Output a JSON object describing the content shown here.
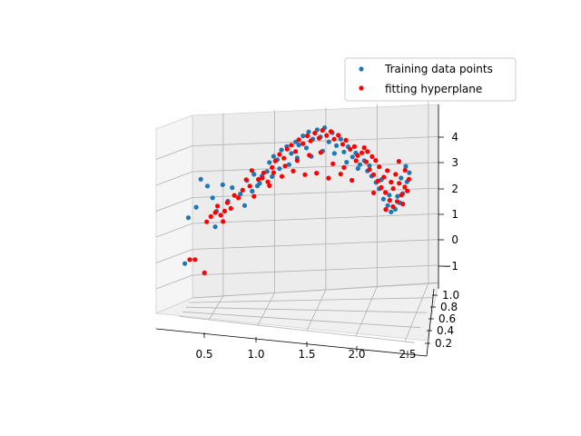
{
  "chart_data": {
    "type": "scatter",
    "projection": "3d",
    "title": "",
    "xlabel": "",
    "ylabel": "",
    "zlabel": "",
    "x_ticks": [
      "0.5",
      "1.0",
      "1.5",
      "2.0",
      "2.5"
    ],
    "y_ticks": [
      "0.2",
      "0.4",
      "0.6",
      "0.8",
      "1.0"
    ],
    "z_ticks": [
      "−1",
      "0",
      "1",
      "2",
      "3",
      "4"
    ],
    "xlim": [
      0.2,
      2.6
    ],
    "ylim": [
      0.15,
      1.05
    ],
    "zlim": [
      -2.0,
      4.9
    ],
    "grid": true,
    "legend_position": "top-right",
    "series": [
      {
        "name": "Training data points",
        "color": "#1f77b4",
        "marker": "circle",
        "points": [
          [
            0.21,
            0.55,
            -0.9
          ],
          [
            0.24,
            0.6,
            0.87
          ],
          [
            0.33,
            0.52,
            1.27
          ],
          [
            0.38,
            0.5,
            2.35
          ],
          [
            0.45,
            0.48,
            2.08
          ],
          [
            0.5,
            0.5,
            1.62
          ],
          [
            0.52,
            0.55,
            0.5
          ],
          [
            0.54,
            0.5,
            1.1
          ],
          [
            0.6,
            0.52,
            2.12
          ],
          [
            0.65,
            0.55,
            1.48
          ],
          [
            0.7,
            0.5,
            2.0
          ],
          [
            0.78,
            0.52,
            1.75
          ],
          [
            0.82,
            0.55,
            1.3
          ],
          [
            0.85,
            0.5,
            2.27
          ],
          [
            0.9,
            0.53,
            1.85
          ],
          [
            0.95,
            0.55,
            2.05
          ],
          [
            1.0,
            0.52,
            2.42
          ],
          [
            1.05,
            0.55,
            2.6
          ],
          [
            1.08,
            0.5,
            2.95
          ],
          [
            1.12,
            0.52,
            3.18
          ],
          [
            1.16,
            0.5,
            3.05
          ],
          [
            1.2,
            0.52,
            3.42
          ],
          [
            1.25,
            0.55,
            3.55
          ],
          [
            1.3,
            0.52,
            3.28
          ],
          [
            1.34,
            0.55,
            3.72
          ],
          [
            1.38,
            0.5,
            3.6
          ],
          [
            1.42,
            0.52,
            3.95
          ],
          [
            1.45,
            0.55,
            3.48
          ],
          [
            1.48,
            0.5,
            4.1
          ],
          [
            1.52,
            0.52,
            3.82
          ],
          [
            1.56,
            0.55,
            4.18
          ],
          [
            1.6,
            0.5,
            3.9
          ],
          [
            1.64,
            0.52,
            4.25
          ],
          [
            1.68,
            0.55,
            3.7
          ],
          [
            1.72,
            0.5,
            4.05
          ],
          [
            1.76,
            0.52,
            3.55
          ],
          [
            1.8,
            0.55,
            3.8
          ],
          [
            1.84,
            0.5,
            3.3
          ],
          [
            1.88,
            0.52,
            3.5
          ],
          [
            1.92,
            0.55,
            3.1
          ],
          [
            1.96,
            0.5,
            3.25
          ],
          [
            2.0,
            0.52,
            2.8
          ],
          [
            2.04,
            0.55,
            2.95
          ],
          [
            2.08,
            0.5,
            2.55
          ],
          [
            2.12,
            0.52,
            2.35
          ],
          [
            2.16,
            0.55,
            2.1
          ],
          [
            2.2,
            0.5,
            1.85
          ],
          [
            2.24,
            0.52,
            1.45
          ],
          [
            2.28,
            0.55,
            1.2
          ],
          [
            2.32,
            0.5,
            0.95
          ],
          [
            2.36,
            0.52,
            1.05
          ],
          [
            2.4,
            0.55,
            1.3
          ],
          [
            2.44,
            0.5,
            1.65
          ],
          [
            2.48,
            0.52,
            2.1
          ],
          [
            2.5,
            0.55,
            2.45
          ],
          [
            2.47,
            0.5,
            2.7
          ],
          [
            2.42,
            0.52,
            2.25
          ],
          [
            2.38,
            0.55,
            1.55
          ],
          [
            2.3,
            0.52,
            1.6
          ],
          [
            2.22,
            0.5,
            2.2
          ],
          [
            1.62,
            0.52,
            3.35
          ],
          [
            1.5,
            0.55,
            3.15
          ],
          [
            1.36,
            0.52,
            3.1
          ],
          [
            1.28,
            0.5,
            2.85
          ],
          [
            1.18,
            0.52,
            2.7
          ],
          [
            1.1,
            0.55,
            2.4
          ],
          [
            0.98,
            0.5,
            2.15
          ],
          [
            0.92,
            0.52,
            2.5
          ],
          [
            1.74,
            0.52,
            3.25
          ],
          [
            1.86,
            0.55,
            2.9
          ],
          [
            1.98,
            0.52,
            2.65
          ],
          [
            2.1,
            0.5,
            2.75
          ]
        ]
      },
      {
        "name": "fitting hyperplane",
        "color": "#ff0000",
        "marker": "circle",
        "points": [
          [
            0.26,
            0.55,
            -0.75
          ],
          [
            0.31,
            0.58,
            -0.75
          ],
          [
            0.41,
            0.55,
            -1.27
          ],
          [
            0.44,
            0.5,
            0.7
          ],
          [
            0.48,
            0.52,
            0.9
          ],
          [
            0.52,
            0.55,
            1.05
          ],
          [
            0.55,
            0.5,
            1.3
          ],
          [
            0.58,
            0.52,
            0.95
          ],
          [
            0.6,
            0.55,
            0.7
          ],
          [
            0.65,
            0.5,
            1.42
          ],
          [
            0.72,
            0.52,
            1.7
          ],
          [
            0.8,
            0.55,
            1.9
          ],
          [
            0.88,
            0.5,
            2.05
          ],
          [
            0.92,
            0.52,
            1.65
          ],
          [
            0.96,
            0.55,
            2.3
          ],
          [
            1.02,
            0.5,
            2.55
          ],
          [
            1.06,
            0.52,
            2.2
          ],
          [
            1.1,
            0.55,
            2.75
          ],
          [
            1.14,
            0.5,
            3.0
          ],
          [
            1.18,
            0.52,
            3.25
          ],
          [
            1.22,
            0.55,
            3.1
          ],
          [
            1.26,
            0.5,
            3.45
          ],
          [
            1.3,
            0.52,
            3.6
          ],
          [
            1.34,
            0.55,
            3.35
          ],
          [
            1.38,
            0.5,
            3.8
          ],
          [
            1.42,
            0.52,
            3.65
          ],
          [
            1.46,
            0.55,
            3.95
          ],
          [
            1.5,
            0.5,
            3.75
          ],
          [
            1.54,
            0.52,
            4.05
          ],
          [
            1.58,
            0.55,
            3.85
          ],
          [
            1.62,
            0.5,
            4.15
          ],
          [
            1.66,
            0.52,
            3.95
          ],
          [
            1.7,
            0.55,
            4.1
          ],
          [
            1.74,
            0.5,
            3.8
          ],
          [
            1.78,
            0.52,
            3.95
          ],
          [
            1.82,
            0.55,
            3.6
          ],
          [
            1.86,
            0.5,
            3.75
          ],
          [
            1.9,
            0.52,
            3.4
          ],
          [
            1.94,
            0.55,
            3.5
          ],
          [
            1.98,
            0.5,
            3.15
          ],
          [
            2.02,
            0.52,
            3.25
          ],
          [
            2.06,
            0.55,
            2.9
          ],
          [
            2.1,
            0.5,
            2.6
          ],
          [
            2.14,
            0.52,
            2.4
          ],
          [
            2.18,
            0.55,
            2.15
          ],
          [
            2.22,
            0.5,
            1.9
          ],
          [
            2.26,
            0.52,
            1.7
          ],
          [
            2.3,
            0.55,
            1.4
          ],
          [
            2.34,
            0.5,
            1.15
          ],
          [
            2.38,
            0.52,
            1.35
          ],
          [
            2.42,
            0.55,
            1.6
          ],
          [
            2.46,
            0.5,
            1.9
          ],
          [
            2.5,
            0.52,
            2.2
          ],
          [
            2.48,
            0.55,
            1.75
          ],
          [
            2.44,
            0.5,
            1.25
          ],
          [
            2.4,
            0.52,
            2.05
          ],
          [
            2.36,
            0.55,
            2.4
          ],
          [
            2.32,
            0.5,
            2.1
          ],
          [
            2.28,
            0.52,
            2.55
          ],
          [
            2.24,
            0.55,
            2.3
          ],
          [
            2.2,
            0.5,
            2.7
          ],
          [
            2.16,
            0.52,
            2.95
          ],
          [
            2.12,
            0.55,
            3.1
          ],
          [
            2.08,
            0.5,
            3.3
          ],
          [
            1.6,
            0.52,
            3.3
          ],
          [
            1.48,
            0.55,
            3.2
          ],
          [
            1.36,
            0.52,
            3.0
          ],
          [
            1.24,
            0.5,
            2.8
          ],
          [
            1.12,
            0.52,
            2.55
          ],
          [
            1.0,
            0.55,
            2.35
          ],
          [
            0.9,
            0.5,
            2.65
          ],
          [
            0.84,
            0.52,
            2.3
          ],
          [
            1.72,
            0.55,
            2.85
          ],
          [
            1.84,
            0.5,
            2.7
          ],
          [
            1.96,
            0.52,
            2.95
          ],
          [
            2.04,
            0.55,
            3.45
          ],
          [
            1.44,
            0.52,
            2.45
          ],
          [
            1.56,
            0.5,
            2.5
          ],
          [
            1.68,
            0.52,
            2.3
          ],
          [
            1.8,
            0.55,
            2.45
          ],
          [
            1.92,
            0.5,
            2.2
          ],
          [
            1.32,
            0.52,
            2.6
          ],
          [
            1.2,
            0.55,
            2.4
          ],
          [
            1.08,
            0.5,
            2.05
          ],
          [
            0.76,
            0.52,
            1.6
          ],
          [
            0.68,
            0.55,
            1.2
          ],
          [
            0.62,
            0.52,
            1.1
          ],
          [
            2.46,
            0.52,
            2.55
          ],
          [
            2.4,
            0.5,
            2.9
          ],
          [
            2.34,
            0.52,
            1.85
          ],
          [
            2.26,
            0.55,
            1.05
          ],
          [
            2.14,
            0.52,
            1.7
          ]
        ]
      }
    ]
  }
}
